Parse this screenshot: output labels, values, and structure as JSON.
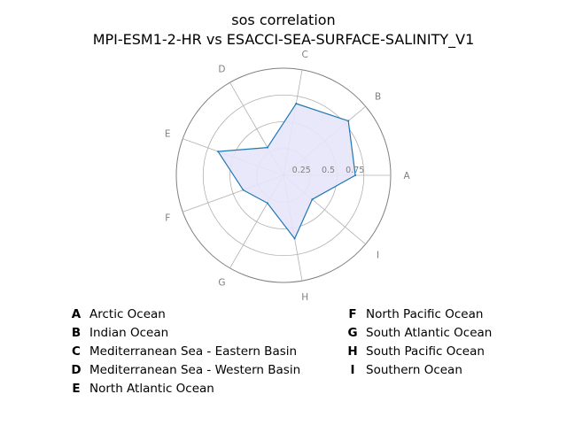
{
  "chart_data": {
    "type": "radar",
    "title": "sos correlation",
    "subtitle": "MPI-ESM1-2-HR vs ESACCI-SEA-SURFACE-SALINITY_V1",
    "rmax": 1.0,
    "rings": [
      0.25,
      0.5,
      0.75,
      1.0
    ],
    "ring_labels": [
      "0.25",
      "0.5",
      "0.75"
    ],
    "categories": [
      "A",
      "B",
      "C",
      "D",
      "E",
      "F",
      "G",
      "H",
      "I"
    ],
    "values": [
      0.67,
      0.79,
      0.68,
      0.3,
      0.65,
      0.4,
      0.3,
      0.6,
      0.35
    ],
    "series_color": "#1f77b4",
    "fill_color": "#e6e6fa",
    "legend": [
      {
        "key": "A",
        "label": "Arctic Ocean"
      },
      {
        "key": "B",
        "label": "Indian Ocean"
      },
      {
        "key": "C",
        "label": "Mediterranean Sea - Eastern Basin"
      },
      {
        "key": "D",
        "label": "Mediterranean Sea - Western Basin"
      },
      {
        "key": "E",
        "label": "North Atlantic Ocean"
      },
      {
        "key": "F",
        "label": "North Pacific Ocean"
      },
      {
        "key": "G",
        "label": "South Atlantic Ocean"
      },
      {
        "key": "H",
        "label": "South Pacific Ocean"
      },
      {
        "key": "I",
        "label": "Southern Ocean"
      }
    ]
  }
}
